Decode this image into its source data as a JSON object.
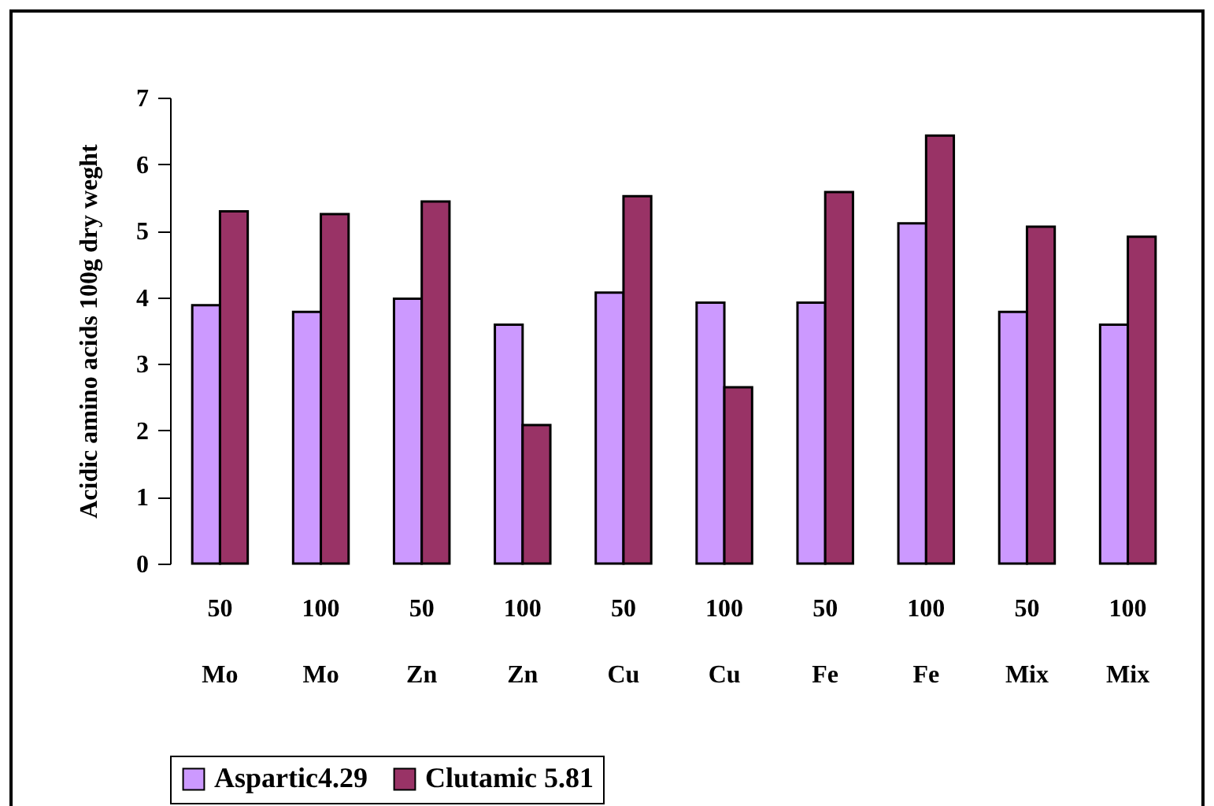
{
  "chart_data": {
    "type": "bar",
    "ylabel": "Acidic amino acids      100g dry weght",
    "categories": [
      "50 Mo",
      "100 Mo",
      "50 Zn",
      "100 Zn",
      "50 Cu",
      "100 Cu",
      "50 Fe",
      "100 Fe",
      "50 Mix",
      "100 Mix"
    ],
    "series": [
      {
        "name": "Aspartic4.29",
        "color": "#cc99ff",
        "values": [
          3.88,
          3.78,
          3.98,
          3.59,
          4.07,
          3.92,
          3.92,
          5.11,
          3.78,
          3.59
        ]
      },
      {
        "name": "Clutamic 5.81",
        "color": "#993366",
        "values": [
          5.29,
          5.25,
          5.44,
          2.08,
          5.52,
          2.65,
          5.58,
          6.43,
          5.06,
          4.91
        ]
      }
    ],
    "ylim": [
      0,
      7
    ],
    "yticks": [
      0,
      1,
      2,
      3,
      4,
      5,
      6,
      7
    ],
    "legend": "bottom"
  }
}
